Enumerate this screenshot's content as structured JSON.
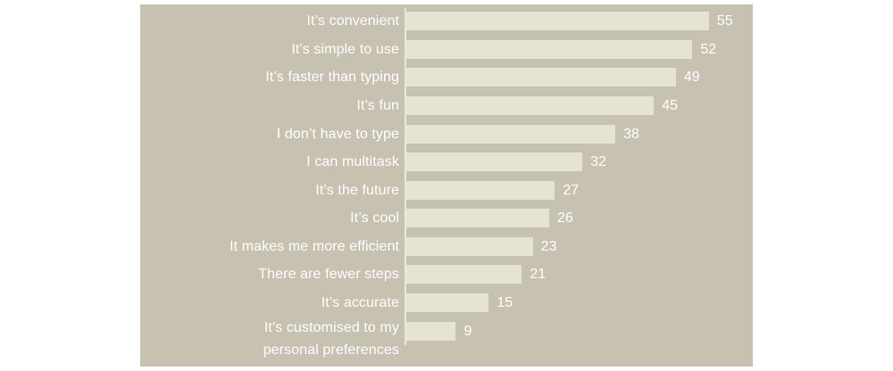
{
  "page": {
    "background_color": "#ffffff"
  },
  "panel": {
    "background_color": "#c7c1b1",
    "axis_line_color": "#eae8db"
  },
  "chart_data": {
    "type": "bar",
    "orientation": "horizontal",
    "title": "",
    "xlabel": "",
    "ylabel": "",
    "xlim": [
      0,
      62
    ],
    "grid": false,
    "legend": false,
    "value_labels_shown": true,
    "bar_color": "#e5e3d4",
    "category_label_color": "#ffffff",
    "value_label_color": "#ffffff",
    "categories": [
      "It’s convenient",
      "It’s simple to use",
      "It’s faster than typing",
      "It’s fun",
      "I don’t have to type",
      "I can multitask",
      "It’s the future",
      "It’s cool",
      "It makes me more efficient",
      "There are fewer steps",
      "It’s accurate",
      "It’s customised to my\npersonal preferences"
    ],
    "values": [
      55,
      52,
      49,
      45,
      38,
      32,
      27,
      26,
      23,
      21,
      15,
      9
    ]
  }
}
